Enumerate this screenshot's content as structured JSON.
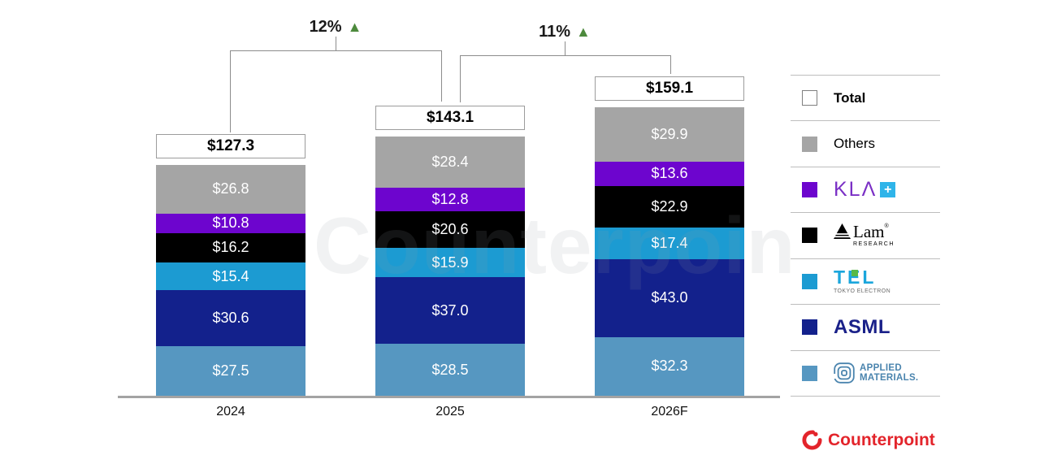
{
  "watermark": "Counterpoint",
  "chart_data": {
    "type": "bar",
    "stacked": true,
    "categories": [
      "2024",
      "2025",
      "2026F"
    ],
    "series": [
      {
        "name": "Applied Materials",
        "color": "#5697C1",
        "values": [
          27.5,
          28.5,
          32.3
        ]
      },
      {
        "name": "ASML",
        "color": "#13218C",
        "values": [
          30.6,
          37.0,
          43.0
        ]
      },
      {
        "name": "TEL",
        "color": "#1C9BD2",
        "values": [
          15.4,
          15.9,
          17.4
        ]
      },
      {
        "name": "Lam Research",
        "color": "#000000",
        "values": [
          16.2,
          20.6,
          22.9
        ]
      },
      {
        "name": "KLA",
        "color": "#6D05CE",
        "values": [
          10.8,
          12.8,
          13.6
        ]
      },
      {
        "name": "Others",
        "color": "#A5A5A5",
        "values": [
          26.8,
          28.4,
          29.9
        ]
      }
    ],
    "totals": [
      127.3,
      143.1,
      159.1
    ],
    "total_labels": [
      "$127.3",
      "$143.1",
      "$159.1"
    ],
    "value_prefix": "$",
    "growth": [
      {
        "label": "12%",
        "arrow": "▲"
      },
      {
        "label": "11%",
        "arrow": "▲"
      }
    ],
    "legend_position": "right",
    "grid": false
  },
  "legend": {
    "items": [
      {
        "key": "total",
        "label": "Total"
      },
      {
        "key": "others",
        "label": "Others"
      },
      {
        "key": "kla",
        "label": "KLΛ",
        "plus": "+"
      },
      {
        "key": "lam",
        "label": "Lam",
        "mark": "®",
        "sub": "RESEARCH"
      },
      {
        "key": "tel",
        "label": "TEL",
        "sub": "TOKYO ELECTRON"
      },
      {
        "key": "asml",
        "label": "ASML"
      },
      {
        "key": "applied",
        "label": "APPLIED",
        "sub": "MATERIALS."
      }
    ],
    "swatches": {
      "total": "#FFFFFF",
      "others": "#A5A5A5",
      "kla": "#6D05CE",
      "lam": "#000000",
      "tel": "#1C9BD2",
      "asml": "#13218C",
      "applied": "#5697C1"
    }
  },
  "footer": {
    "brand": "Counterpoint"
  },
  "colors": {
    "growth_arrow": "#4D8A3D",
    "brand_red": "#E3242B"
  }
}
